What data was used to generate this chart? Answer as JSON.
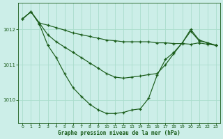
{
  "background_color": "#cceee8",
  "grid_color": "#aaddcc",
  "line_color": "#1a5c1a",
  "xlabel": "Graphe pression niveau de la mer (hPa)",
  "x_ticks": [
    0,
    1,
    2,
    3,
    4,
    5,
    6,
    7,
    8,
    9,
    10,
    11,
    12,
    13,
    14,
    15,
    16,
    17,
    18,
    19,
    20,
    21,
    22,
    23
  ],
  "y_ticks": [
    1010,
    1011,
    1012
  ],
  "ylim": [
    1009.35,
    1012.75
  ],
  "xlim": [
    -0.5,
    23.5
  ],
  "series_flat": [
    1012.3,
    1012.5,
    1012.18,
    1012.12,
    1012.05,
    1011.98,
    1011.9,
    1011.85,
    1011.8,
    1011.75,
    1011.7,
    1011.68,
    1011.65,
    1011.65,
    1011.65,
    1011.65,
    1011.62,
    1011.62,
    1011.6,
    1011.6,
    1011.58,
    1011.62,
    1011.58,
    1011.55
  ],
  "series_mid": [
    1012.3,
    1012.5,
    1012.18,
    1011.85,
    1011.65,
    1011.5,
    1011.35,
    1011.2,
    1011.05,
    1010.9,
    1010.75,
    1010.65,
    1010.62,
    1010.65,
    1010.68,
    1010.72,
    1010.75,
    1011.0,
    1011.32,
    1011.62,
    1011.95,
    1011.68,
    1011.62,
    1011.55
  ],
  "series_dip": [
    1012.3,
    1012.5,
    1012.15,
    1011.55,
    1011.2,
    1010.75,
    1010.35,
    1010.1,
    1009.88,
    1009.72,
    1009.62,
    1009.62,
    1009.65,
    1009.72,
    1009.75,
    1010.05,
    1010.7,
    1011.15,
    1011.35,
    1011.62,
    1012.0,
    1011.7,
    1011.62,
    1011.55
  ]
}
